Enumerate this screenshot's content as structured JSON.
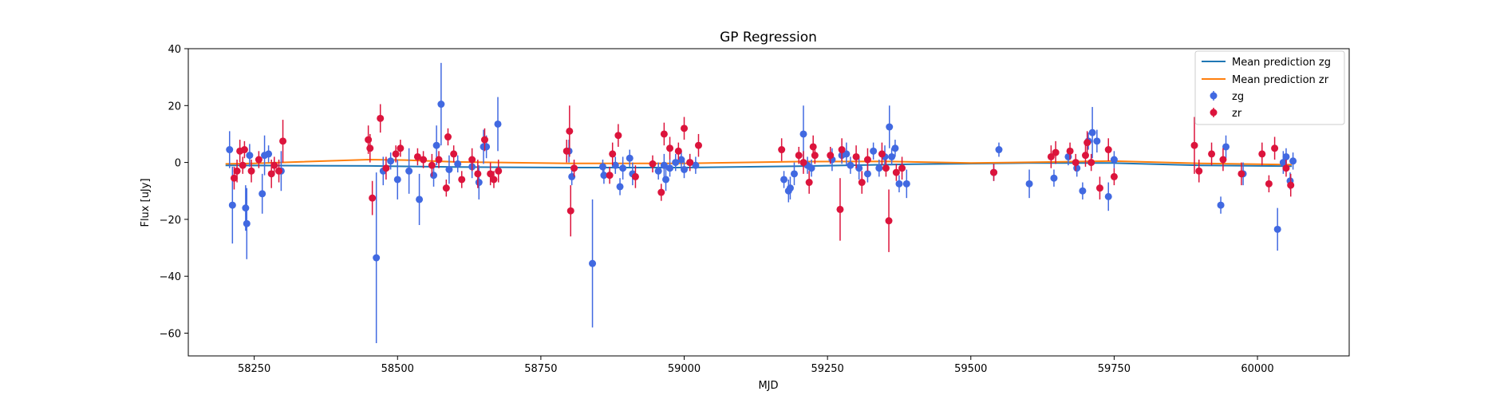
{
  "chart_data": {
    "type": "scatter",
    "title": "GP Regression",
    "xlabel": "MJD",
    "ylabel": "Flux [uJy]",
    "xlim": [
      58135,
      60160
    ],
    "ylim": [
      -68,
      40
    ],
    "xticks": [
      58250,
      58500,
      58750,
      59000,
      59250,
      59500,
      59750,
      60000
    ],
    "yticks": [
      -60,
      -40,
      -20,
      0,
      20,
      40
    ],
    "grid": false,
    "legend_position": "top-right",
    "lines": [
      {
        "name": "Mean prediction zg",
        "color": "#1f77b4",
        "points": [
          [
            58200,
            -1.0
          ],
          [
            58450,
            -1.2
          ],
          [
            58600,
            -1.6
          ],
          [
            58800,
            -1.8
          ],
          [
            59000,
            -1.8
          ],
          [
            59200,
            -1.3
          ],
          [
            59400,
            -0.6
          ],
          [
            59600,
            -0.2
          ],
          [
            59750,
            -0.2
          ],
          [
            59900,
            -1.0
          ],
          [
            60060,
            -1.3
          ]
        ]
      },
      {
        "name": "Mean prediction zr",
        "color": "#ff7f0e",
        "points": [
          [
            58200,
            -0.5
          ],
          [
            58250,
            -0.3
          ],
          [
            58450,
            1.0
          ],
          [
            58520,
            0.8
          ],
          [
            58600,
            0.2
          ],
          [
            58800,
            -0.3
          ],
          [
            59000,
            -0.3
          ],
          [
            59200,
            0.3
          ],
          [
            59350,
            0.4
          ],
          [
            59500,
            -0.2
          ],
          [
            59650,
            0.2
          ],
          [
            59750,
            0.5
          ],
          [
            59900,
            -0.3
          ],
          [
            60060,
            -0.8
          ]
        ]
      }
    ],
    "series": [
      {
        "name": "zg",
        "color": "#4169e1",
        "points": [
          [
            58207,
            4.5,
            6.5
          ],
          [
            58212,
            -15,
            13.5
          ],
          [
            58235,
            -16,
            8
          ],
          [
            58237,
            -21.5,
            12.5
          ],
          [
            58242,
            2.5,
            4
          ],
          [
            58264,
            -11,
            7
          ],
          [
            58268,
            2.5,
            7
          ],
          [
            58275,
            3,
            3
          ],
          [
            58297,
            -3,
            7
          ],
          [
            58463,
            -33.5,
            30
          ],
          [
            58475,
            -3,
            5
          ],
          [
            58488,
            0.5,
            3
          ],
          [
            58500,
            -6,
            7
          ],
          [
            58520,
            -3,
            8
          ],
          [
            58538,
            -13,
            9
          ],
          [
            58563,
            -4.5,
            4
          ],
          [
            58568,
            6,
            7
          ],
          [
            58576,
            20.5,
            14.5
          ],
          [
            58590,
            -2.5,
            5
          ],
          [
            58605,
            -0.5,
            3
          ],
          [
            58630,
            -1.5,
            4
          ],
          [
            58642,
            -7,
            6
          ],
          [
            58650,
            5.5,
            6
          ],
          [
            58655,
            5.5,
            4
          ],
          [
            58675,
            13.5,
            9.5
          ],
          [
            58799,
            4,
            4
          ],
          [
            58804,
            -5,
            3
          ],
          [
            58840,
            -35.5,
            22.5
          ],
          [
            58858,
            -1.5,
            2.5
          ],
          [
            58860,
            -4.5,
            3
          ],
          [
            58880,
            -1,
            3
          ],
          [
            58888,
            -8.5,
            3
          ],
          [
            58893,
            -2,
            4
          ],
          [
            58905,
            1.5,
            3
          ],
          [
            58910,
            -4,
            4
          ],
          [
            58955,
            -3,
            3
          ],
          [
            58965,
            -1,
            4
          ],
          [
            58968,
            -6,
            4
          ],
          [
            58975,
            -2,
            3
          ],
          [
            58985,
            0,
            3
          ],
          [
            58995,
            1,
            3
          ],
          [
            59000,
            -2.5,
            3
          ],
          [
            59010,
            0,
            3
          ],
          [
            59020,
            -1,
            3
          ],
          [
            59174,
            -6,
            3
          ],
          [
            59182,
            -10,
            4
          ],
          [
            59185,
            -9,
            4
          ],
          [
            59192,
            -4,
            4
          ],
          [
            59208,
            10,
            10
          ],
          [
            59215,
            -1,
            3
          ],
          [
            59222,
            -2,
            3
          ],
          [
            59258,
            1,
            4
          ],
          [
            59275,
            2.5,
            3
          ],
          [
            59283,
            3,
            4
          ],
          [
            59290,
            -1,
            3
          ],
          [
            59305,
            -2,
            4
          ],
          [
            59320,
            -4,
            3
          ],
          [
            59330,
            4,
            3
          ],
          [
            59340,
            -2,
            3
          ],
          [
            59350,
            2,
            4
          ],
          [
            59358,
            12.5,
            7.5
          ],
          [
            59362,
            2,
            3
          ],
          [
            59368,
            5,
            3
          ],
          [
            59375,
            -7.5,
            3
          ],
          [
            59388,
            -7.5,
            5
          ],
          [
            59540,
            -3.5,
            3
          ],
          [
            59549,
            4.5,
            2.5
          ],
          [
            59602,
            -7.5,
            5
          ],
          [
            59645,
            -5.5,
            3
          ],
          [
            59670,
            2,
            3
          ],
          [
            59685,
            -2,
            3
          ],
          [
            59695,
            -10,
            3
          ],
          [
            59705,
            7.5,
            3
          ],
          [
            59712,
            10.5,
            9
          ],
          [
            59720,
            7.5,
            4
          ],
          [
            59740,
            -12,
            5
          ],
          [
            59750,
            1,
            3
          ],
          [
            59936,
            -15,
            3
          ],
          [
            59945,
            5.5,
            4
          ],
          [
            59975,
            -4,
            4
          ],
          [
            60035,
            -23.5,
            7.5
          ],
          [
            60045,
            0,
            4
          ],
          [
            60050,
            2,
            3
          ],
          [
            60057,
            -6.5,
            3
          ],
          [
            60062,
            0.5,
            3
          ]
        ]
      },
      {
        "name": "zr",
        "color": "#dc143c",
        "points": [
          [
            58215,
            -5.5,
            4
          ],
          [
            58220,
            -3,
            4
          ],
          [
            58225,
            4,
            4
          ],
          [
            58230,
            -1,
            3
          ],
          [
            58233,
            4.5,
            3
          ],
          [
            58245,
            -3,
            4
          ],
          [
            58258,
            1,
            3
          ],
          [
            58280,
            -4,
            5
          ],
          [
            58285,
            -1,
            3
          ],
          [
            58293,
            -3,
            4
          ],
          [
            58300,
            7.5,
            7.5
          ],
          [
            58449,
            8,
            5
          ],
          [
            58452,
            5,
            5
          ],
          [
            58456,
            -12.5,
            6
          ],
          [
            58470,
            15.5,
            5
          ],
          [
            58480,
            -2,
            4
          ],
          [
            58497,
            3,
            3
          ],
          [
            58505,
            5,
            3
          ],
          [
            58535,
            2,
            3
          ],
          [
            58545,
            1,
            3
          ],
          [
            58560,
            -1,
            4
          ],
          [
            58572,
            1,
            3
          ],
          [
            58585,
            -9,
            3
          ],
          [
            58588,
            9,
            3
          ],
          [
            58598,
            3,
            3
          ],
          [
            58612,
            -6,
            3
          ],
          [
            58630,
            1,
            4
          ],
          [
            58640,
            -4,
            5
          ],
          [
            58652,
            8,
            4
          ],
          [
            58662,
            -4,
            4
          ],
          [
            58668,
            -6,
            3
          ],
          [
            58676,
            -3,
            4
          ],
          [
            58795,
            4,
            4
          ],
          [
            58800,
            11,
            9
          ],
          [
            58802,
            -17,
            9
          ],
          [
            58808,
            -2,
            3
          ],
          [
            58870,
            -4.5,
            3
          ],
          [
            58875,
            3,
            4
          ],
          [
            58885,
            9.5,
            4
          ],
          [
            58915,
            -5,
            4
          ],
          [
            58945,
            -0.5,
            3
          ],
          [
            58960,
            -10.5,
            3
          ],
          [
            58965,
            10,
            4
          ],
          [
            58975,
            5,
            4
          ],
          [
            58990,
            4,
            3
          ],
          [
            59000,
            12,
            4
          ],
          [
            59010,
            0,
            3
          ],
          [
            59025,
            6,
            4
          ],
          [
            59170,
            4.5,
            4
          ],
          [
            59200,
            2.5,
            3
          ],
          [
            59208,
            0,
            4
          ],
          [
            59218,
            -7,
            4
          ],
          [
            59225,
            5.5,
            4
          ],
          [
            59228,
            2.5,
            3
          ],
          [
            59255,
            2.5,
            3
          ],
          [
            59272,
            -16.5,
            11
          ],
          [
            59275,
            4.5,
            4
          ],
          [
            59300,
            2,
            4
          ],
          [
            59310,
            -7,
            4
          ],
          [
            59320,
            1,
            4
          ],
          [
            59345,
            3,
            4
          ],
          [
            59352,
            -2,
            3
          ],
          [
            59357,
            -20.5,
            11
          ],
          [
            59370,
            -3.5,
            3
          ],
          [
            59380,
            -2,
            4
          ],
          [
            59540,
            -3.5,
            3
          ],
          [
            59640,
            2,
            4
          ],
          [
            59648,
            3.5,
            4
          ],
          [
            59673,
            4,
            3
          ],
          [
            59683,
            0,
            3
          ],
          [
            59700,
            2.5,
            4
          ],
          [
            59703,
            7,
            4
          ],
          [
            59710,
            0,
            3
          ],
          [
            59725,
            -9,
            4
          ],
          [
            59740,
            4.5,
            4
          ],
          [
            59750,
            -5,
            3
          ],
          [
            59890,
            6,
            10
          ],
          [
            59898,
            -3,
            4
          ],
          [
            59920,
            3,
            4
          ],
          [
            59940,
            1,
            4
          ],
          [
            59972,
            -4,
            4
          ],
          [
            60008,
            3,
            4
          ],
          [
            60020,
            -7.5,
            3
          ],
          [
            60030,
            5,
            4
          ],
          [
            60050,
            -2,
            3
          ],
          [
            60058,
            -8,
            4
          ]
        ]
      }
    ]
  }
}
